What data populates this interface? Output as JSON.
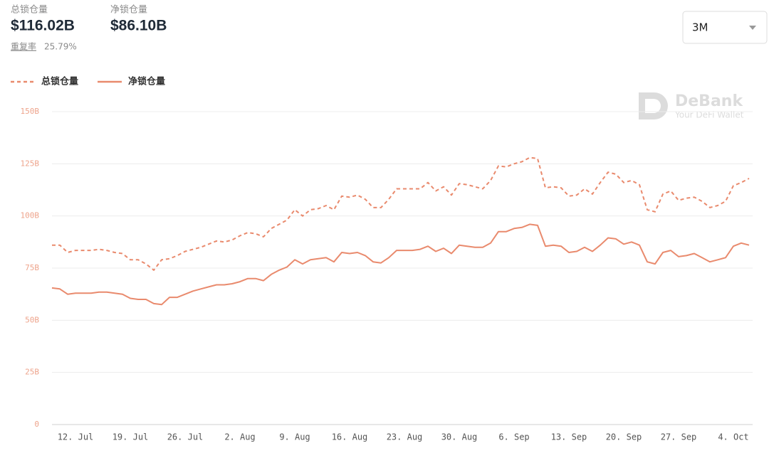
{
  "header": {
    "stats": [
      {
        "label": "总锁仓量",
        "value": "$116.02B"
      },
      {
        "label": "净锁仓量",
        "value": "$86.10B"
      }
    ],
    "ratio": {
      "label": "重复率",
      "value": "25.79%"
    }
  },
  "range_selector": "3M",
  "watermark": {
    "title": "DeBank",
    "subtitle": "Your DeFi Wallet"
  },
  "chart_data": {
    "type": "line",
    "categories": [
      null,
      null,
      null,
      "12. Jul",
      null,
      null,
      null,
      null,
      null,
      null,
      "19. Jul",
      null,
      null,
      null,
      null,
      null,
      null,
      "26. Jul",
      null,
      null,
      null,
      null,
      null,
      null,
      "2. Aug",
      null,
      null,
      null,
      null,
      null,
      null,
      "9. Aug",
      null,
      null,
      null,
      null,
      null,
      null,
      "16. Aug",
      null,
      null,
      null,
      null,
      null,
      null,
      "23. Aug",
      null,
      null,
      null,
      null,
      null,
      null,
      "30. Aug",
      null,
      null,
      null,
      null,
      null,
      null,
      "6. Sep",
      null,
      null,
      null,
      null,
      null,
      null,
      "13. Sep",
      null,
      null,
      null,
      null,
      null,
      null,
      "20. Sep",
      null,
      null,
      null,
      null,
      null,
      null,
      "27. Sep",
      null,
      null,
      null,
      null,
      null,
      null,
      "4. Oct",
      null,
      null
    ],
    "series": [
      {
        "name": "总锁仓量",
        "color": "#e98a6d",
        "line_style": "dashed",
        "values": [
          86,
          86,
          82.5,
          83.5,
          83.5,
          83.5,
          84,
          83.5,
          82.5,
          82,
          79,
          79,
          77,
          74,
          79,
          79.5,
          81,
          83,
          84,
          85,
          86.5,
          88,
          87.5,
          88.5,
          90.5,
          92,
          91.5,
          90,
          94,
          96,
          98,
          103,
          100,
          103,
          103.5,
          105,
          103,
          109.5,
          109,
          110,
          108,
          104,
          104,
          108,
          113,
          113,
          113,
          113,
          116,
          112,
          114,
          110,
          115.5,
          115,
          114,
          113,
          117,
          124,
          123.5,
          125,
          126,
          128,
          127.5,
          113.5,
          114,
          113.5,
          109.5,
          110,
          113,
          110.5,
          116,
          121,
          120,
          116,
          117,
          115,
          103,
          102,
          110.5,
          112,
          107.5,
          108.5,
          109,
          107,
          104,
          105,
          107,
          114.5,
          116,
          118
        ]
      },
      {
        "name": "净锁仓量",
        "color": "#e98a6d",
        "line_style": "solid",
        "values": [
          65.5,
          65,
          62.5,
          63,
          63,
          63,
          63.5,
          63.5,
          63,
          62.5,
          60.5,
          60,
          60,
          58,
          57.5,
          61,
          61,
          62.5,
          64,
          65,
          66,
          67,
          67,
          67.5,
          68.5,
          70,
          70,
          69,
          72,
          74,
          75.5,
          79,
          77,
          79,
          79.5,
          80,
          78,
          82.5,
          82,
          82.5,
          81,
          78,
          77.5,
          80,
          83.5,
          83.5,
          83.5,
          84,
          85.5,
          83,
          84.5,
          82,
          86,
          85.5,
          85,
          85,
          87,
          92.5,
          92.5,
          94,
          94.5,
          96,
          95.5,
          85.5,
          86,
          85.5,
          82.5,
          83,
          85,
          83,
          86,
          89.5,
          89,
          86.5,
          87.5,
          86,
          78,
          77,
          82.5,
          83.5,
          80.5,
          81,
          82,
          80,
          78,
          79,
          80,
          85.5,
          87,
          86
        ]
      }
    ],
    "ylim": [
      0,
      150
    ],
    "yticks": [
      0,
      {
        "value": 25,
        "label": "25B"
      },
      {
        "value": 50,
        "label": "50B"
      },
      {
        "value": 75,
        "label": "75B"
      },
      {
        "value": 100,
        "label": "100B"
      },
      {
        "value": 125,
        "label": "125B"
      },
      {
        "value": 150,
        "label": "150B"
      }
    ],
    "grid": true
  }
}
